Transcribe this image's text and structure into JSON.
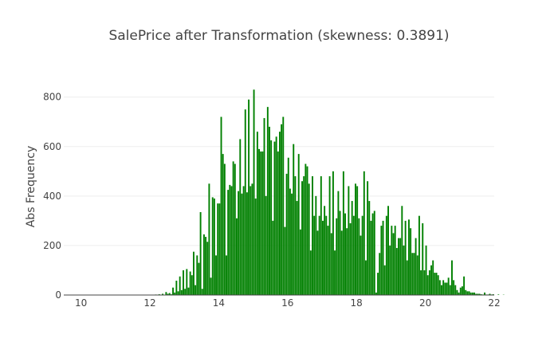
{
  "chart_data": {
    "type": "bar",
    "title": "SalePrice after Transformation (skewness: 0.3891)",
    "xlabel": "",
    "ylabel": "Abs Frequency",
    "xlim": [
      9.5,
      22
    ],
    "ylim": [
      0,
      870
    ],
    "x_ticks": [
      10,
      12,
      14,
      16,
      18,
      20,
      22
    ],
    "y_ticks": [
      0,
      200,
      400,
      600,
      800
    ],
    "grid": true,
    "legend": "none",
    "bar_color": "#008000",
    "bin_start": 9.5,
    "bin_width": 0.05,
    "values": [
      0,
      0,
      0,
      0,
      0,
      0,
      0,
      0,
      0,
      0,
      0,
      0,
      0,
      0,
      0,
      0,
      0,
      0,
      0,
      0,
      0,
      0,
      0,
      0,
      0,
      0,
      0,
      0,
      0,
      0,
      0,
      0,
      0,
      0,
      0,
      0,
      0,
      0,
      0,
      0,
      0,
      0,
      0,
      0,
      0,
      0,
      0,
      0,
      0,
      0,
      0,
      0,
      0,
      2,
      0,
      3,
      0,
      5,
      0,
      12,
      5,
      8,
      3,
      30,
      10,
      58,
      15,
      75,
      20,
      100,
      25,
      105,
      30,
      95,
      80,
      175,
      40,
      160,
      130,
      335,
      25,
      245,
      235,
      215,
      450,
      70,
      395,
      390,
      160,
      370,
      370,
      720,
      570,
      530,
      160,
      425,
      445,
      440,
      540,
      530,
      310,
      420,
      630,
      410,
      440,
      750,
      415,
      790,
      440,
      450,
      830,
      390,
      660,
      590,
      580,
      580,
      715,
      400,
      760,
      680,
      625,
      300,
      620,
      640,
      580,
      660,
      690,
      720,
      275,
      490,
      555,
      430,
      410,
      610,
      480,
      380,
      570,
      265,
      460,
      480,
      530,
      520,
      450,
      180,
      480,
      320,
      400,
      260,
      320,
      480,
      300,
      360,
      320,
      280,
      480,
      250,
      500,
      180,
      310,
      420,
      340,
      260,
      500,
      330,
      270,
      440,
      290,
      380,
      320,
      450,
      440,
      310,
      240,
      320,
      500,
      140,
      460,
      380,
      300,
      330,
      340,
      10,
      90,
      170,
      280,
      300,
      120,
      320,
      360,
      200,
      280,
      250,
      280,
      190,
      230,
      230,
      360,
      200,
      300,
      140,
      305,
      270,
      170,
      170,
      230,
      160,
      320,
      100,
      290,
      100,
      200,
      80,
      100,
      120,
      140,
      90,
      90,
      80,
      60,
      40,
      60,
      50,
      50,
      70,
      40,
      140,
      60,
      40,
      20,
      10,
      30,
      35,
      75,
      20,
      15,
      15,
      10,
      10,
      10,
      5,
      5,
      5,
      3,
      2,
      10,
      2,
      2,
      5,
      2,
      3,
      0,
      0,
      2,
      0,
      0,
      1,
      0,
      0,
      0,
      0
    ]
  }
}
